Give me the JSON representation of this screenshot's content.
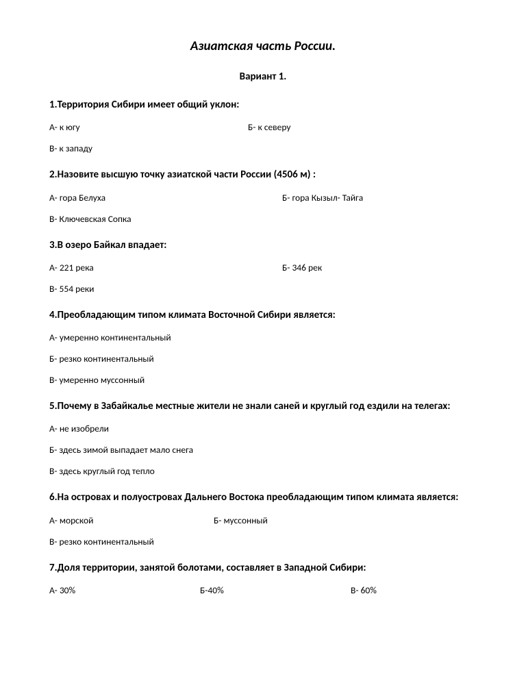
{
  "title": "Азиатская часть России.",
  "variant": "Вариант 1.",
  "q1": {
    "text": "1.Территория Сибири имеет общий уклон:",
    "a": "А- к югу",
    "b": "Б- к северу",
    "v": "В- к западу"
  },
  "q2": {
    "text": "2.Назовите высшую точку азиатской части России (4506 м) :",
    "a": "А- гора Белуха",
    "b": "Б- гора Кызыл- Тайга",
    "v": "В- Ключевская Сопка"
  },
  "q3": {
    "text": "3.В озеро Байкал впадает:",
    "a": "А- 221 река",
    "b": "Б- 346 рек",
    "v": "В- 554 реки"
  },
  "q4": {
    "text": "4.Преобладающим типом климата Восточной Сибири является:",
    "a": "А- умеренно континентальный",
    "b": "Б- резко континентальный",
    "v": "В- умеренно муссонный"
  },
  "q5": {
    "text": "5.Почему в Забайкалье местные жители не знали саней и круглый год ездили на телегах:",
    "a": "А- не изобрели",
    "b": "Б- здесь зимой выпадает мало снега",
    "v": "В- здесь круглый год тепло"
  },
  "q6": {
    "text": "6.На островах и полуостровах Дальнего Востока преобладающим типом климата является:",
    "a": "А- морской",
    "b": "Б- муссонный",
    "v": "В- резко континентальный"
  },
  "q7": {
    "text": "7.Доля территории, занятой болотами, составляет в Западной Сибири:",
    "a": "А- 30%",
    "b": "Б-40%",
    "v": "В- 60%"
  }
}
